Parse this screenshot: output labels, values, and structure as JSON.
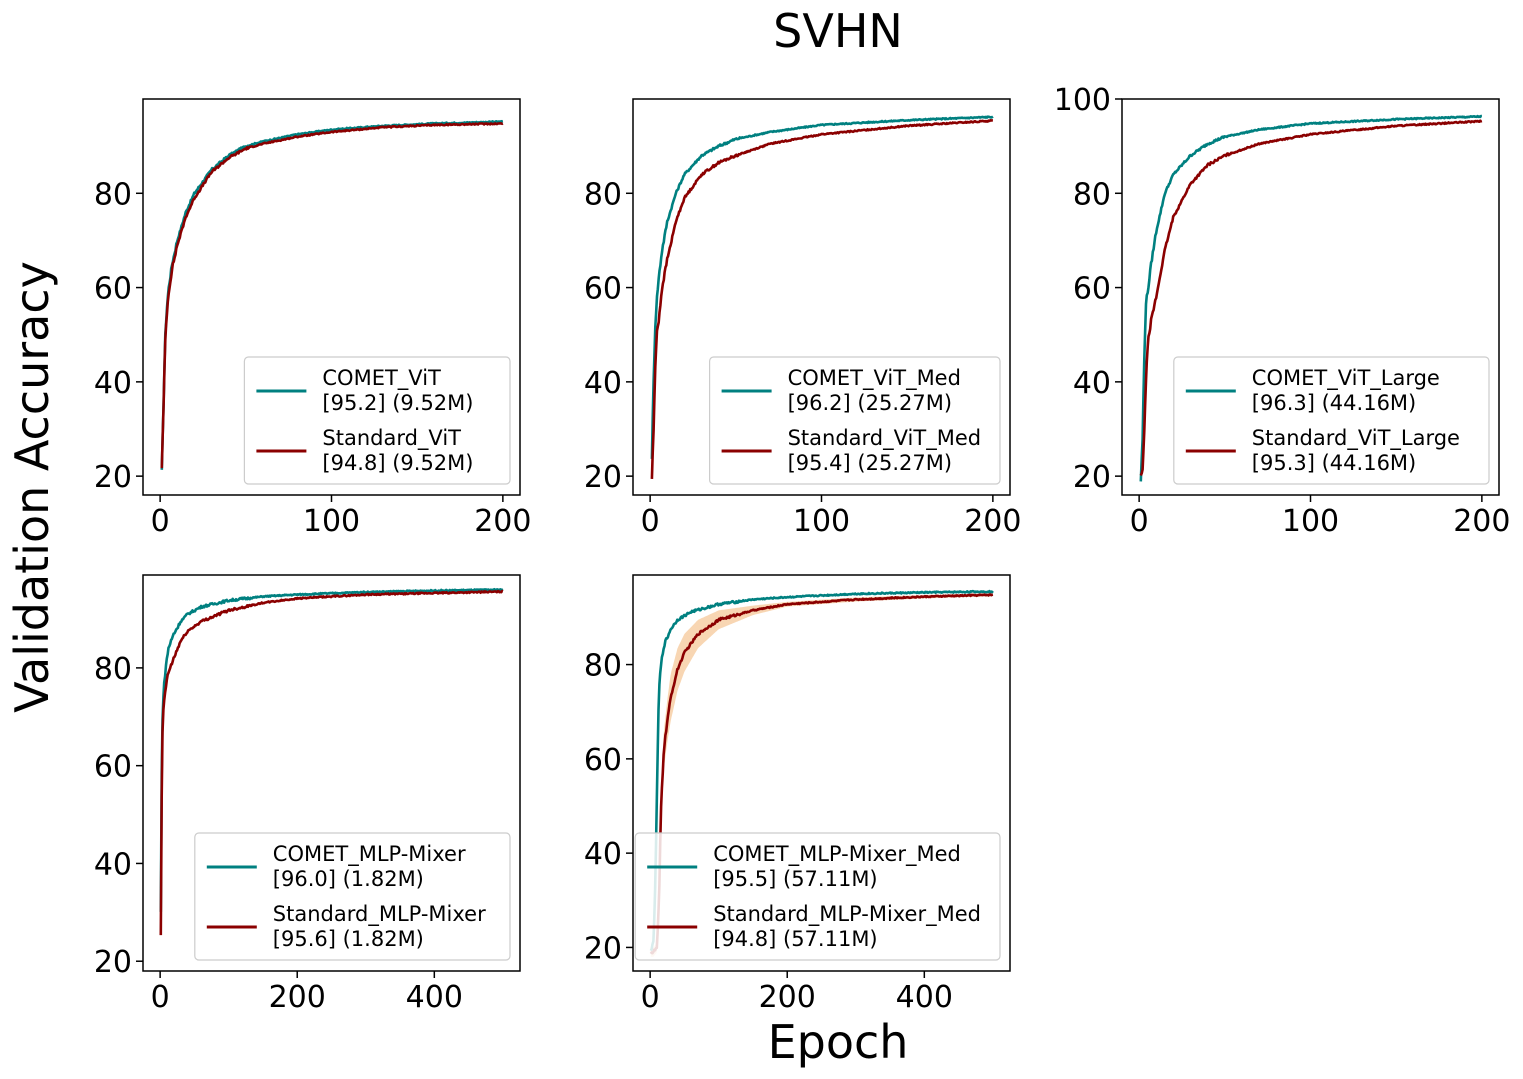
{
  "figure": {
    "title": "SVHN",
    "xlabel": "Epoch",
    "ylabel": "Validation Accuracy"
  },
  "colors": {
    "comet": "#008080",
    "standard": "#8b0000",
    "band": "#f5c89a",
    "axes": "#000000"
  },
  "chart_data": [
    {
      "type": "line",
      "title": "",
      "xlim": [
        -10,
        210
      ],
      "ylim": [
        16,
        100
      ],
      "xticks": [
        0,
        100,
        200
      ],
      "yticks": [
        20,
        40,
        60,
        80
      ],
      "legend": "lower-right",
      "series": [
        {
          "name": "COMET_ViT",
          "note": "[95.2] (9.52M)",
          "color": "comet",
          "points": [
            [
              1,
              21
            ],
            [
              2,
              36
            ],
            [
              3,
              50
            ],
            [
              4,
              56
            ],
            [
              5,
              60
            ],
            [
              7,
              65
            ],
            [
              10,
              70
            ],
            [
              15,
              76
            ],
            [
              20,
              80
            ],
            [
              30,
              85
            ],
            [
              40,
              88
            ],
            [
              50,
              90
            ],
            [
              60,
              91
            ],
            [
              80,
              92.5
            ],
            [
              100,
              93.5
            ],
            [
              130,
              94.3
            ],
            [
              160,
              94.8
            ],
            [
              200,
              95.2
            ]
          ]
        },
        {
          "name": "Standard_ViT",
          "note": "[94.8] (9.52M)",
          "color": "standard",
          "points": [
            [
              1,
              22
            ],
            [
              2,
              35
            ],
            [
              3,
              49
            ],
            [
              4,
              55
            ],
            [
              5,
              59
            ],
            [
              7,
              64
            ],
            [
              10,
              69
            ],
            [
              15,
              75
            ],
            [
              20,
              79
            ],
            [
              30,
              84.5
            ],
            [
              40,
              87.5
            ],
            [
              50,
              89.5
            ],
            [
              60,
              90.5
            ],
            [
              80,
              92
            ],
            [
              100,
              93
            ],
            [
              130,
              94
            ],
            [
              160,
              94.5
            ],
            [
              200,
              94.8
            ]
          ]
        }
      ]
    },
    {
      "type": "line",
      "title": "",
      "xlim": [
        -10,
        210
      ],
      "ylim": [
        16,
        100
      ],
      "xticks": [
        0,
        100,
        200
      ],
      "yticks": [
        20,
        40,
        60,
        80
      ],
      "legend": "lower-right",
      "series": [
        {
          "name": "COMET_ViT_Med",
          "note": "[96.2] (25.27M)",
          "color": "comet",
          "points": [
            [
              1,
              24
            ],
            [
              2,
              40
            ],
            [
              3,
              52
            ],
            [
              4,
              58
            ],
            [
              5,
              62
            ],
            [
              7,
              68
            ],
            [
              10,
              74
            ],
            [
              15,
              80
            ],
            [
              20,
              84
            ],
            [
              30,
              88
            ],
            [
              40,
              90
            ],
            [
              50,
              91.5
            ],
            [
              70,
              93
            ],
            [
              100,
              94.5
            ],
            [
              150,
              95.5
            ],
            [
              200,
              96.2
            ]
          ]
        },
        {
          "name": "Standard_ViT_Med",
          "note": "[95.4] (25.27M)",
          "color": "standard",
          "points": [
            [
              1,
              19.5
            ],
            [
              2,
              30
            ],
            [
              3,
              43
            ],
            [
              4,
              51
            ],
            [
              5,
              53
            ],
            [
              7,
              60
            ],
            [
              10,
              66
            ],
            [
              15,
              74
            ],
            [
              20,
              79
            ],
            [
              30,
              84
            ],
            [
              40,
              86.5
            ],
            [
              50,
              88
            ],
            [
              70,
              90.5
            ],
            [
              100,
              92.5
            ],
            [
              150,
              94.3
            ],
            [
              200,
              95.4
            ]
          ]
        }
      ]
    },
    {
      "type": "line",
      "title": "",
      "xlim": [
        -10,
        210
      ],
      "ylim": [
        16,
        100
      ],
      "xticks": [
        0,
        100,
        200
      ],
      "yticks": [
        20,
        40,
        60,
        80,
        100
      ],
      "legend": "lower-right",
      "series": [
        {
          "name": "COMET_ViT_Large",
          "note": "[96.3] (44.16M)",
          "color": "comet",
          "points": [
            [
              1,
              19
            ],
            [
              2,
              28
            ],
            [
              3,
              45
            ],
            [
              4,
              57
            ],
            [
              5,
              59
            ],
            [
              7,
              65
            ],
            [
              10,
              72
            ],
            [
              15,
              80
            ],
            [
              20,
              84
            ],
            [
              30,
              88
            ],
            [
              40,
              90.5
            ],
            [
              50,
              92
            ],
            [
              70,
              93.5
            ],
            [
              100,
              94.8
            ],
            [
              150,
              95.7
            ],
            [
              200,
              96.3
            ]
          ]
        },
        {
          "name": "Standard_ViT_Large",
          "note": "[95.3] (44.16M)",
          "color": "standard",
          "points": [
            [
              1,
              20
            ],
            [
              2,
              21
            ],
            [
              3,
              30
            ],
            [
              4,
              40
            ],
            [
              5,
              48
            ],
            [
              7,
              53
            ],
            [
              10,
              58
            ],
            [
              15,
              68
            ],
            [
              20,
              75
            ],
            [
              30,
              82
            ],
            [
              40,
              86
            ],
            [
              50,
              88
            ],
            [
              70,
              90.5
            ],
            [
              100,
              92.5
            ],
            [
              150,
              94.3
            ],
            [
              200,
              95.3
            ]
          ]
        }
      ]
    },
    {
      "type": "line",
      "title": "",
      "xlim": [
        -25,
        525
      ],
      "ylim": [
        18,
        99
      ],
      "xticks": [
        0,
        200,
        400
      ],
      "yticks": [
        20,
        40,
        60,
        80
      ],
      "legend": "lower-right",
      "series": [
        {
          "name": "COMET_MLP-Mixer",
          "note": "[96.0] (1.82M)",
          "color": "comet",
          "points": [
            [
              1,
              30
            ],
            [
              2,
              55
            ],
            [
              3,
              68
            ],
            [
              5,
              75
            ],
            [
              8,
              80
            ],
            [
              12,
              84
            ],
            [
              20,
              87
            ],
            [
              30,
              89.5
            ],
            [
              40,
              91
            ],
            [
              60,
              92.5
            ],
            [
              100,
              93.8
            ],
            [
              150,
              94.6
            ],
            [
              200,
              95
            ],
            [
              300,
              95.5
            ],
            [
              400,
              95.8
            ],
            [
              500,
              96
            ]
          ]
        },
        {
          "name": "Standard_MLP-Mixer",
          "note": "[95.6] (1.82M)",
          "color": "standard",
          "points": [
            [
              1,
              25
            ],
            [
              2,
              50
            ],
            [
              3,
              65
            ],
            [
              5,
              72
            ],
            [
              8,
              76
            ],
            [
              12,
              79
            ],
            [
              20,
              82
            ],
            [
              30,
              85.5
            ],
            [
              40,
              87.5
            ],
            [
              60,
              89.5
            ],
            [
              100,
              91.8
            ],
            [
              150,
              93.3
            ],
            [
              200,
              94.2
            ],
            [
              300,
              95
            ],
            [
              400,
              95.3
            ],
            [
              500,
              95.6
            ]
          ]
        }
      ]
    },
    {
      "type": "line",
      "title": "",
      "xlim": [
        -25,
        525
      ],
      "ylim": [
        15,
        99
      ],
      "xticks": [
        0,
        200,
        400
      ],
      "yticks": [
        20,
        40,
        60,
        80
      ],
      "legend": "lower-right",
      "series": [
        {
          "name": "COMET_MLP-Mixer_Med",
          "note": "[95.5] (57.11M)",
          "color": "comet",
          "points": [
            [
              1,
              19
            ],
            [
              3,
              20
            ],
            [
              5,
              22
            ],
            [
              7,
              30
            ],
            [
              9,
              45
            ],
            [
              11,
              62
            ],
            [
              13,
              75
            ],
            [
              16,
              80
            ],
            [
              20,
              84
            ],
            [
              30,
              87.5
            ],
            [
              40,
              89.5
            ],
            [
              60,
              91.2
            ],
            [
              100,
              92.8
            ],
            [
              150,
              93.8
            ],
            [
              200,
              94.3
            ],
            [
              300,
              95
            ],
            [
              400,
              95.3
            ],
            [
              500,
              95.5
            ]
          ]
        },
        {
          "name": "Standard_MLP-Mixer_Med",
          "note": "[94.8] (57.11M)",
          "color": "standard",
          "points": [
            [
              1,
              19
            ],
            [
              5,
              19
            ],
            [
              10,
              20
            ],
            [
              13,
              30
            ],
            [
              16,
              50
            ],
            [
              20,
              62
            ],
            [
              25,
              68
            ],
            [
              30,
              73
            ],
            [
              40,
              79
            ],
            [
              50,
              82.5
            ],
            [
              70,
              86.5
            ],
            [
              100,
              89.5
            ],
            [
              150,
              91.5
            ],
            [
              200,
              92.8
            ],
            [
              300,
              93.8
            ],
            [
              400,
              94.4
            ],
            [
              500,
              94.8
            ]
          ]
        }
      ],
      "band_series": "Standard_MLP-Mixer_Med",
      "band_width": [
        [
          10,
          1
        ],
        [
          20,
          4
        ],
        [
          30,
          5
        ],
        [
          50,
          4
        ],
        [
          70,
          3
        ],
        [
          100,
          2
        ],
        [
          150,
          1
        ],
        [
          200,
          0.5
        ],
        [
          500,
          0.3
        ]
      ]
    }
  ]
}
